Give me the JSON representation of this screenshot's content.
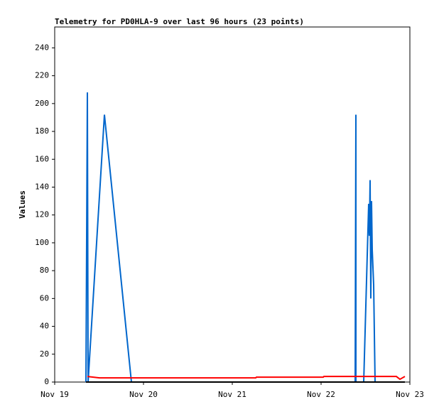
{
  "chart_data": {
    "type": "line",
    "title": "Telemetry for PD0HLA-9 over last 96 hours (23 points)",
    "y_label": "Values",
    "xlim": [
      0,
      4
    ],
    "xticks": [
      {
        "value": 0,
        "label": "Nov 19"
      },
      {
        "value": 1,
        "label": "Nov 20"
      },
      {
        "value": 2,
        "label": "Nov 21"
      },
      {
        "value": 3,
        "label": "Nov 22"
      },
      {
        "value": 4,
        "label": "Nov 23"
      }
    ],
    "ylim": [
      0,
      255
    ],
    "yticks": [
      0,
      20,
      40,
      60,
      80,
      100,
      120,
      140,
      160,
      180,
      200,
      220,
      240
    ],
    "series": [
      {
        "color": "#0066cc",
        "x": [
          0.352,
          0.36,
          0.368,
          0.376,
          0.56,
          0.864,
          3.384,
          3.384,
          3.392,
          3.392,
          3.48,
          3.536,
          3.544,
          3.552,
          3.56,
          3.568,
          3.576,
          3.592,
          3.608
        ],
        "values": [
          0,
          104,
          208,
          0,
          192,
          0,
          null,
          0,
          192,
          0,
          0,
          128,
          105,
          145,
          60,
          130,
          95,
          70,
          0
        ]
      },
      {
        "color": "#ff0000",
        "x": [
          0.368,
          0.504,
          2.264,
          2.272,
          3.024,
          3.032,
          3.848,
          3.888,
          3.944
        ],
        "values": [
          4,
          3,
          3,
          3.5,
          3.5,
          4,
          4,
          2,
          4
        ]
      },
      {
        "color": "#000000",
        "x": [
          0.352,
          3.944
        ],
        "values": [
          0,
          0
        ]
      }
    ]
  }
}
